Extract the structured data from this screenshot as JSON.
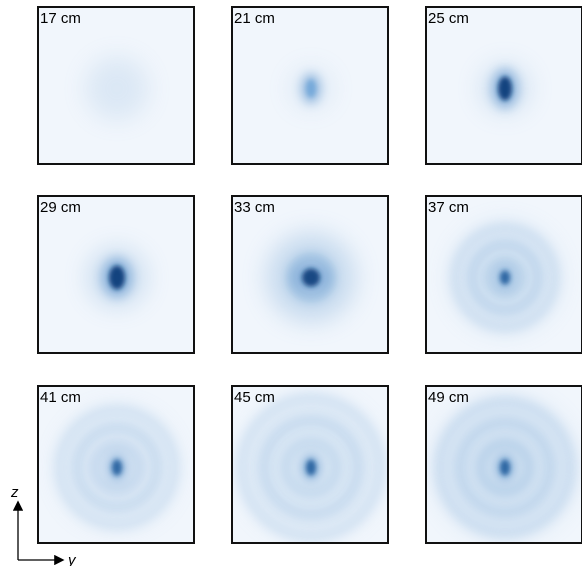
{
  "panels": [
    {
      "label": "17 cm"
    },
    {
      "label": "21 cm"
    },
    {
      "label": "25 cm"
    },
    {
      "label": "29 cm"
    },
    {
      "label": "33 cm"
    },
    {
      "label": "37 cm"
    },
    {
      "label": "41 cm"
    },
    {
      "label": "45 cm"
    },
    {
      "label": "49 cm"
    }
  ],
  "axes": {
    "vertical": "z",
    "horizontal": "y"
  }
}
